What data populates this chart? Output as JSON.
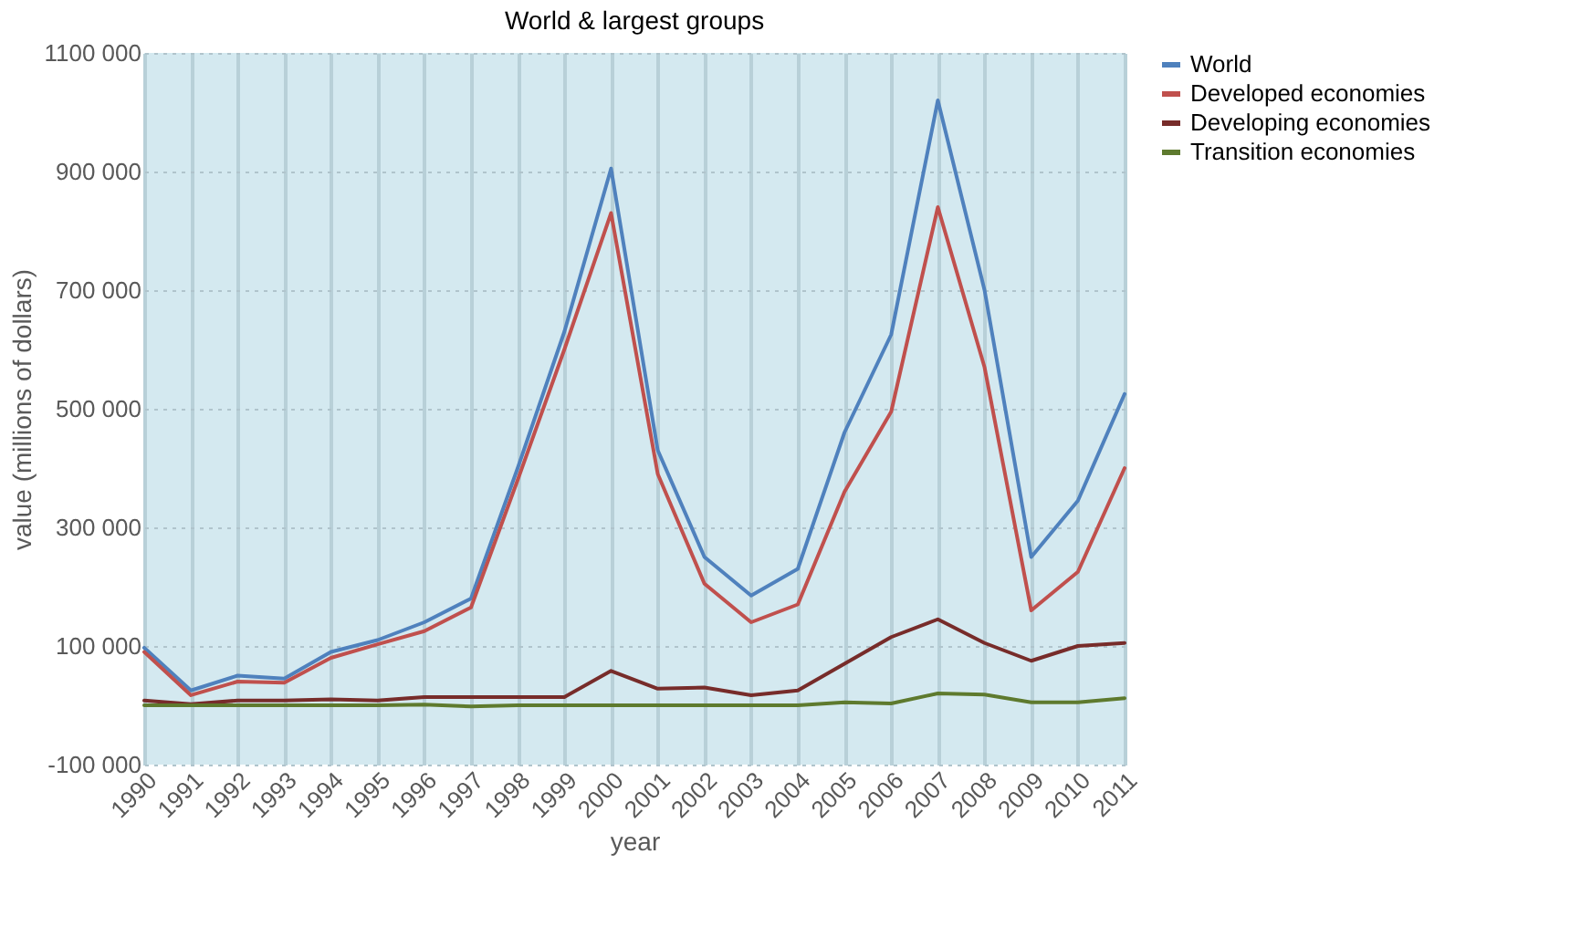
{
  "chart_data": {
    "type": "line",
    "title": "World & largest groups",
    "xlabel": "year",
    "ylabel": "value (millions of dollars)",
    "categories": [
      "1990",
      "1991",
      "1992",
      "1993",
      "1994",
      "1995",
      "1996",
      "1997",
      "1998",
      "1999",
      "2000",
      "2001",
      "2002",
      "2003",
      "2004",
      "2005",
      "2006",
      "2007",
      "2008",
      "2009",
      "2010",
      "2011"
    ],
    "series": [
      {
        "name": "World",
        "color": "#4f81bd",
        "values": [
          97000,
          25000,
          50000,
          45000,
          90000,
          110000,
          140000,
          180000,
          400000,
          630000,
          905000,
          430000,
          250000,
          185000,
          230000,
          460000,
          625000,
          1020000,
          700000,
          250000,
          345000,
          525000
        ]
      },
      {
        "name": "Developed economies",
        "color": "#c0504d",
        "values": [
          90000,
          17000,
          40000,
          38000,
          80000,
          103000,
          125000,
          165000,
          380000,
          600000,
          830000,
          390000,
          205000,
          140000,
          170000,
          360000,
          495000,
          840000,
          570000,
          160000,
          225000,
          400000
        ]
      },
      {
        "name": "Developing economies",
        "color": "#772c2a",
        "values": [
          8000,
          2000,
          8000,
          8000,
          10000,
          8000,
          14000,
          14000,
          14000,
          14000,
          58000,
          28000,
          30000,
          17000,
          25000,
          70000,
          115000,
          145000,
          105000,
          75000,
          100000,
          105000
        ]
      },
      {
        "name": "Transition economies",
        "color": "#5e7a2e",
        "values": [
          0,
          0,
          0,
          0,
          0,
          0,
          1000,
          -2000,
          0,
          0,
          0,
          0,
          0,
          0,
          0,
          5000,
          3000,
          20000,
          18000,
          5000,
          5000,
          12000
        ]
      }
    ],
    "ylim": [
      -100000,
      1100000
    ],
    "yticks": [
      {
        "value": -100000,
        "label": "-100 000"
      },
      {
        "value": 100000,
        "label": "100 000"
      },
      {
        "value": 300000,
        "label": "300 000"
      },
      {
        "value": 500000,
        "label": "500 000"
      },
      {
        "value": 700000,
        "label": "700 000"
      },
      {
        "value": 900000,
        "label": "900 000"
      },
      {
        "value": 1100000,
        "label": "1100 000"
      }
    ],
    "grid": true,
    "legend": "right",
    "marker": "none",
    "line_style": "solid"
  }
}
